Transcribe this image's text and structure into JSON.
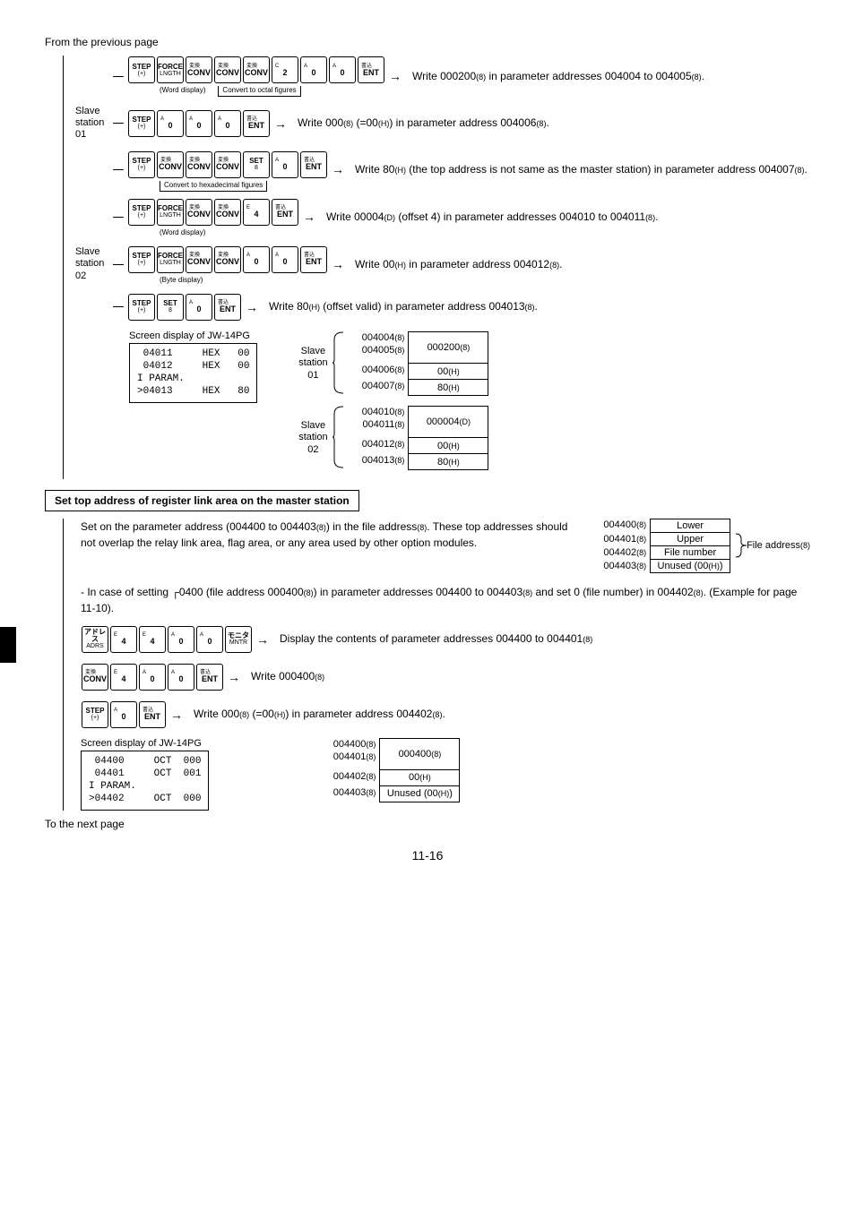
{
  "header_text": "From the previous page",
  "footer_text": "To the next page",
  "page_number": "11-16",
  "rows": {
    "r1": {
      "keys": [
        "STEP|(+)",
        "FORCE|LNGTH",
        "変換|CONV",
        "変換|CONV",
        "変換|CONV",
        "C|2",
        "A|0",
        "A|0",
        "書込|ENT"
      ],
      "note_below_a": "(Word display)",
      "note_below_b": "Convert to octal figures",
      "desc": "Write 000200(8) in parameter addresses 004004 to 004005(8)."
    },
    "r2": {
      "station": "Slave station 01",
      "keys": [
        "STEP|(+)",
        "A|0",
        "A|0",
        "A|0",
        "書込|ENT"
      ],
      "desc": "Write 000(8) (=00(H)) in parameter address 004006(8)."
    },
    "r3": {
      "keys": [
        "STEP|(+)",
        "変換|CONV",
        "変換|CONV",
        "変換|CONV",
        "SET|8",
        "A|0",
        "書込|ENT"
      ],
      "note_below": "Convert to hexadecimal figures",
      "desc": "Write 80(H) (the top address is not same as the master station) in parameter address 004007(8)."
    },
    "r4": {
      "keys": [
        "STEP|(+)",
        "FORCE|LNGTH",
        "変換|CONV",
        "変換|CONV",
        "E|4",
        "書込|ENT"
      ],
      "note_below": "(Word display)",
      "desc": "Write 00004(D) (offset 4) in parameter addresses 004010 to 004011(8)."
    },
    "r5": {
      "station": "Slave station 02",
      "keys": [
        "STEP|(+)",
        "FORCE|LNGTH",
        "変換|CONV",
        "変換|CONV",
        "A|0",
        "A|0",
        "書込|ENT"
      ],
      "note_below": "(Byte display)",
      "desc": "Write 00(H) in parameter address 004012(8)."
    },
    "r6": {
      "keys": [
        "STEP|(+)",
        "SET|8",
        "A|0",
        "書込|ENT"
      ],
      "desc": "Write 80(H) (offset valid) in parameter address 004013(8)."
    }
  },
  "screen1": {
    "title": "Screen display of JW-14PG",
    "lines": [
      " 04011     HEX   00",
      " 04012     HEX   00",
      "I PARAM.",
      ">04013     HEX   80"
    ]
  },
  "memtable1": {
    "groups": [
      {
        "label": "Slave station 01",
        "rows": [
          {
            "addr": "004004(8)",
            "val": "000200(8)",
            "rowspan": 2
          },
          {
            "addr": "004005(8)"
          },
          {
            "addr": "004006(8)",
            "val": "00(H)"
          },
          {
            "addr": "004007(8)",
            "val": "80(H)"
          }
        ]
      },
      {
        "label": "Slave station 02",
        "rows": [
          {
            "addr": "004010(8)",
            "val": "000004(D)",
            "rowspan": 2
          },
          {
            "addr": "004011(8)"
          },
          {
            "addr": "004012(8)",
            "val": "00(H)"
          },
          {
            "addr": "004013(8)",
            "val": "80(H)"
          }
        ]
      }
    ]
  },
  "section2": {
    "title": "Set top address of register link area on the master station",
    "para": "Set on the parameter address (004400 to 004403(8)) in the file address(8). These top addresses should not overlap the relay link area, flag area, or any area used by other option modules.",
    "table": [
      {
        "addr": "004400(8)",
        "val": "Lower"
      },
      {
        "addr": "004401(8)",
        "val": "Upper"
      },
      {
        "addr": "004402(8)",
        "val": "File number"
      },
      {
        "addr": "004403(8)",
        "val": "Unused (00(H))"
      }
    ],
    "side_label": "File address(8)",
    "note": "- In case of setting ┌0400 (file address 000400(8)) in parameter addresses 004400 to 004403(8) and set 0 (file number) in 004402(8). (Example for page 11-10).",
    "r7": {
      "keys": [
        "アドレス|ADRS",
        "E|4",
        "E|4",
        "A|0",
        "A|0",
        "モニタ|MNTR"
      ],
      "desc": "Display the contents of parameter addresses 004400 to 004401(8)"
    },
    "r8": {
      "keys": [
        "変換|CONV",
        "E|4",
        "A|0",
        "A|0",
        "書込|ENT"
      ],
      "desc": "Write 000400(8)"
    },
    "r9": {
      "keys": [
        "STEP|(+)",
        "A|0",
        "書込|ENT"
      ],
      "desc": "Write 000(8) (=00(H)) in parameter address 004402(8)."
    }
  },
  "screen2": {
    "title": "Screen display of JW-14PG",
    "lines": [
      " 04400     OCT  000",
      " 04401     OCT  001",
      "I PARAM.",
      ">04402     OCT  000"
    ]
  },
  "memtable2": [
    {
      "addr": "004400(8)",
      "val": "000400(8)",
      "rowspan": 2
    },
    {
      "addr": "004401(8)"
    },
    {
      "addr": "004402(8)",
      "val": "00(H)"
    },
    {
      "addr": "004403(8)",
      "val": "Unused (00(H))"
    }
  ]
}
